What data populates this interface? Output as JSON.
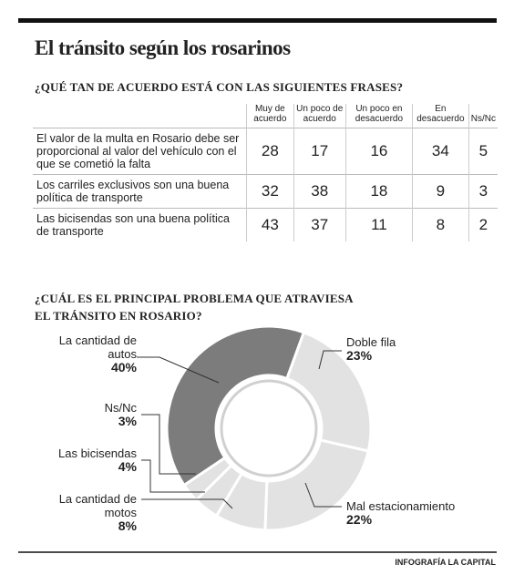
{
  "title": "El tránsito según los rosarinos",
  "table": {
    "question": "¿QUÉ TAN DE ACUERDO ESTÁ CON LAS SIGUIENTES FRASES?",
    "header": [
      "Muy de acuerdo",
      "Un poco de acuerdo",
      "Un poco en desacuerdo",
      "En desacuerdo",
      "Ns/Nc"
    ],
    "rows": [
      {
        "label": "El valor de la multa en Rosario debe ser proporcional al valor del vehículo con el que se cometió la falta",
        "values": [
          28,
          17,
          16,
          34,
          5
        ]
      },
      {
        "label": "Los carriles exclusivos son una buena política de transporte",
        "values": [
          32,
          38,
          18,
          9,
          3
        ]
      },
      {
        "label": "Las bicisendas son una buena política de transporte",
        "values": [
          43,
          37,
          11,
          8,
          2
        ]
      }
    ]
  },
  "chart_data": {
    "type": "pie",
    "title": "¿CUÁL ES EL PRINCIPAL PROBLEMA QUE ATRAVIESA EL TRÁNSITO EN ROSARIO?",
    "categories": [
      "Doble fila",
      "Mal estacionamiento",
      "La cantidad de motos",
      "Las bicisendas",
      "Ns/Nc",
      "La cantidad de autos"
    ],
    "values": [
      23,
      22,
      8,
      4,
      3,
      40
    ],
    "value_labels": [
      "23%",
      "22%",
      "8%",
      "4%",
      "3%",
      "40%"
    ],
    "colors": [
      "#e2e2e2",
      "#e2e2e2",
      "#e2e2e2",
      "#e2e2e2",
      "#e2e2e2",
      "#7c7c7c"
    ]
  },
  "footer": "INFOGRAFÍA LA CAPITAL"
}
